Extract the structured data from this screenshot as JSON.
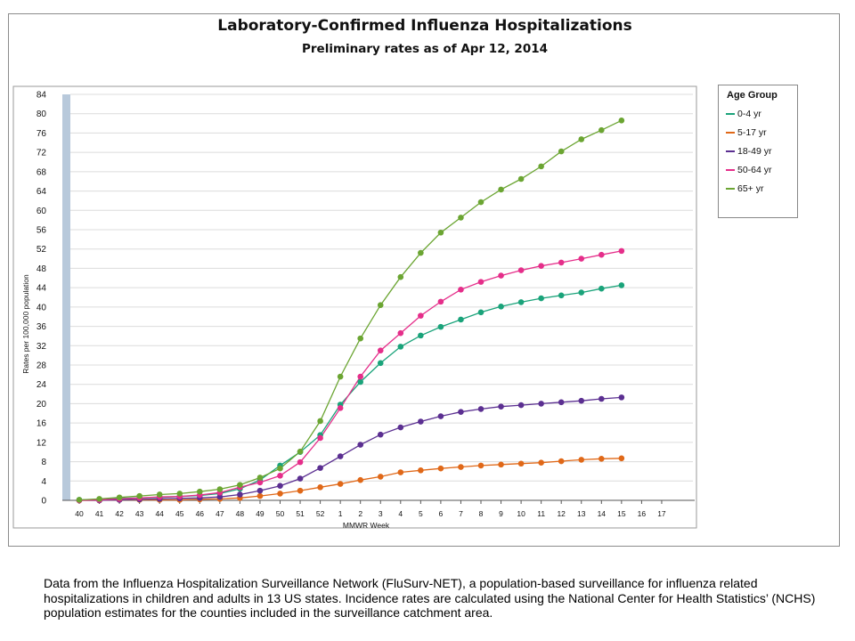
{
  "chart_data": {
    "type": "line",
    "title": "Laboratory-Confirmed Influenza Hospitalizations",
    "subtitle": "Preliminary rates as of Apr 12, 2014",
    "xlabel": "MMWR Week",
    "ylabel": "Rates per 100,000 population",
    "ylim": [
      0,
      84
    ],
    "yticks": [
      0,
      4,
      8,
      12,
      16,
      20,
      24,
      28,
      32,
      36,
      40,
      44,
      48,
      52,
      56,
      60,
      64,
      68,
      72,
      76,
      80,
      84
    ],
    "categories": [
      "40",
      "41",
      "42",
      "43",
      "44",
      "45",
      "46",
      "47",
      "48",
      "49",
      "50",
      "51",
      "52",
      "1",
      "2",
      "3",
      "4",
      "5",
      "6",
      "7",
      "8",
      "9",
      "10",
      "11",
      "12",
      "13",
      "14",
      "15",
      "16",
      "17"
    ],
    "grid": true,
    "legend_title": "Age Group",
    "legend_position": "right",
    "series": [
      {
        "name": "0-4 yr",
        "color": "#1aa37a",
        "values": [
          0.1,
          0.2,
          0.4,
          0.5,
          0.6,
          0.8,
          1.0,
          1.4,
          2.4,
          4.2,
          7.2,
          10.0,
          13.5,
          19.8,
          24.5,
          28.4,
          31.8,
          34.1,
          35.9,
          37.4,
          38.9,
          40.1,
          41.0,
          41.8,
          42.4,
          43.0,
          43.8,
          44.5,
          null,
          null
        ]
      },
      {
        "name": "5-17 yr",
        "color": "#e06818",
        "values": [
          0.0,
          0.0,
          0.1,
          0.1,
          0.1,
          0.1,
          0.2,
          0.3,
          0.5,
          0.9,
          1.4,
          2.0,
          2.7,
          3.4,
          4.2,
          4.9,
          5.8,
          6.2,
          6.6,
          6.9,
          7.2,
          7.4,
          7.6,
          7.8,
          8.1,
          8.4,
          8.6,
          8.7,
          null,
          null
        ]
      },
      {
        "name": "18-49 yr",
        "color": "#5b2f91",
        "values": [
          0.0,
          0.0,
          0.1,
          0.2,
          0.3,
          0.4,
          0.5,
          0.7,
          1.2,
          2.0,
          3.0,
          4.5,
          6.7,
          9.1,
          11.5,
          13.6,
          15.1,
          16.3,
          17.4,
          18.3,
          18.9,
          19.4,
          19.7,
          20.0,
          20.3,
          20.6,
          21.0,
          21.3,
          null,
          null
        ]
      },
      {
        "name": "50-64 yr",
        "color": "#e52e8a",
        "values": [
          0.0,
          0.1,
          0.3,
          0.5,
          0.7,
          0.8,
          1.1,
          1.6,
          2.7,
          3.7,
          5.1,
          7.9,
          12.9,
          19.1,
          25.6,
          31.0,
          34.6,
          38.2,
          41.1,
          43.6,
          45.2,
          46.5,
          47.6,
          48.5,
          49.2,
          50.0,
          50.8,
          51.6,
          null,
          null
        ]
      },
      {
        "name": "65+ yr",
        "color": "#6ba532",
        "values": [
          0.1,
          0.3,
          0.6,
          0.9,
          1.2,
          1.4,
          1.8,
          2.3,
          3.2,
          4.7,
          6.6,
          10.1,
          16.4,
          25.6,
          33.5,
          40.4,
          46.2,
          51.2,
          55.4,
          58.5,
          61.7,
          64.3,
          66.5,
          69.1,
          72.2,
          74.7,
          76.6,
          78.6,
          null,
          null
        ]
      }
    ]
  },
  "footnote": "Data from the Influenza  Hospitalization Surveillance  Network (FluSurv-NET),  a population-based surveillance  for influenza related hospitalizations in children and adults in 13 US states. Incidence rates are calculated using the National Center for Health Statistics’ (NCHS) population estimates for the counties included in the surveillance catchment area."
}
